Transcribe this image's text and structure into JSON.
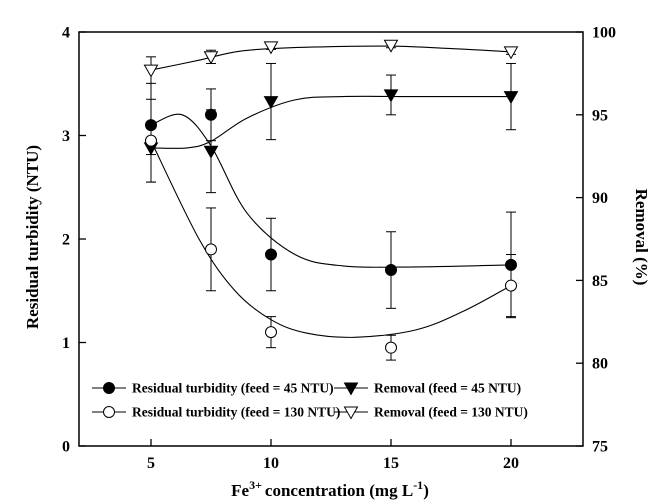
{
  "chart_data": {
    "type": "line",
    "xlabel": "concentration (mg L",
    "xlabel_prefix": "Fe",
    "xlabel_prefix_sup": "3+",
    "xlabel_sup": "-1",
    "xlabel_suffix": ")",
    "ylabel": "Residual turbidity (NTU)",
    "y2label": "Removal (%)",
    "xlim": [
      2,
      23
    ],
    "ylim": [
      0,
      4
    ],
    "y2lim": [
      75,
      100
    ],
    "x_ticks": [
      5,
      10,
      15,
      20
    ],
    "y_ticks": [
      0,
      1,
      2,
      3,
      4
    ],
    "y2_ticks": [
      75,
      80,
      85,
      90,
      95,
      100
    ],
    "grid": false,
    "legend_position": "bottom-center",
    "series": [
      {
        "name": "Residual turbidity (feed = 45 NTU)",
        "axis": "left",
        "marker": "filled-circle",
        "x": [
          5,
          7.5,
          10,
          15,
          20
        ],
        "y": [
          3.1,
          3.2,
          1.85,
          1.7,
          1.75
        ],
        "err": [
          0.55,
          0.25,
          0.35,
          0.37,
          0.51
        ],
        "curve": [
          3.0,
          2.5,
          2.0,
          1.78,
          1.73,
          1.73,
          1.74,
          1.75
        ]
      },
      {
        "name": "Removal (feed = 45 NTU)",
        "axis": "right",
        "marker": "filled-triangle-down",
        "x": [
          5,
          7.5,
          10,
          15,
          20
        ],
        "y": [
          93,
          92.8,
          95.8,
          96.2,
          96.1
        ],
        "err": [
          0.4,
          2.5,
          2.3,
          1.2,
          2.0
        ]
      },
      {
        "name": "Residual turbidity (feed = 130 NTU)",
        "axis": "left",
        "marker": "open-circle",
        "x": [
          5,
          7.5,
          10,
          15,
          20
        ],
        "y": [
          2.95,
          1.9,
          1.1,
          0.95,
          1.55
        ],
        "err": [
          0.4,
          0.4,
          0.15,
          0.12,
          0.3
        ]
      },
      {
        "name": "Removal (feed = 130 NTU)",
        "axis": "right",
        "marker": "open-triangle-down",
        "x": [
          5,
          7.5,
          10,
          15,
          20
        ],
        "y": [
          97.7,
          98.5,
          99.1,
          99.2,
          98.8
        ],
        "err": [
          0.8,
          0.4,
          0.15,
          0.15,
          0.15
        ]
      }
    ]
  }
}
